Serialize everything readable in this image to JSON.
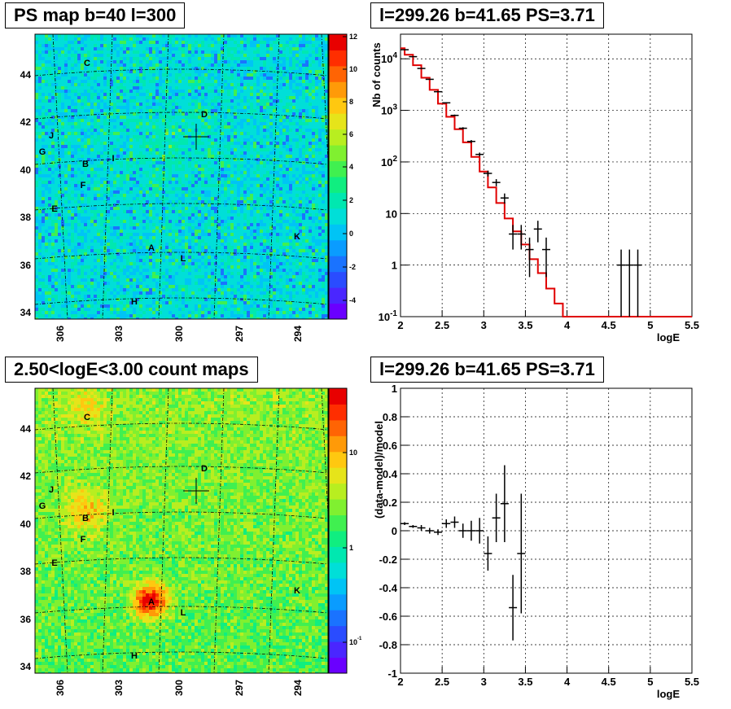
{
  "panels": {
    "tl_title": "PS map b=40 l=300",
    "tr_title": "l=299.26 b=41.65 PS=3.71",
    "bl_title": "2.50<logE<3.00 count maps",
    "br_title": "l=299.26 b=41.65 PS=3.71"
  },
  "chart_data": [
    {
      "type": "heatmap",
      "title": "PS map b=40 l=300",
      "x_ticks": [
        "306",
        "303",
        "300",
        "297",
        "294"
      ],
      "y_ticks": [
        "44",
        "42",
        "40",
        "38",
        "36",
        "34"
      ],
      "colorbar_ticks": [
        "12",
        "10",
        "8",
        "6",
        "4",
        "2",
        "0",
        "-2",
        "-4"
      ],
      "source_labels": [
        "C",
        "D",
        "J",
        "G",
        "I",
        "B",
        "F",
        "E",
        "K",
        "A",
        "L",
        "H"
      ],
      "colors": {
        "low": "#6a5acd",
        "mid": "#31d8c8",
        "high": "#e01010"
      }
    },
    {
      "type": "scatter",
      "title": "l=299.26 b=41.65 PS=3.71",
      "xlabel": "logE",
      "ylabel": "Nb of counts",
      "xlim": [
        2,
        5.5
      ],
      "ylim": [
        0.1,
        30000
      ],
      "yscale": "log",
      "x_ticks": [
        "2",
        "2.5",
        "3",
        "3.5",
        "4",
        "4.5",
        "5",
        "5.5"
      ],
      "y_ticks": [
        "10^4",
        "10^3",
        "10^2",
        "10",
        "1",
        "10^-1"
      ],
      "grid": true,
      "series": [
        {
          "kind": "data-points",
          "x": [
            2.05,
            2.15,
            2.25,
            2.35,
            2.45,
            2.55,
            2.65,
            2.75,
            2.85,
            2.95,
            3.05,
            3.15,
            3.25,
            3.35,
            3.45,
            3.55,
            3.65,
            3.75,
            4.65,
            4.75,
            4.85
          ],
          "y": [
            15000,
            11000,
            6500,
            4000,
            2300,
            1400,
            800,
            450,
            250,
            140,
            60,
            40,
            20,
            4,
            4,
            2,
            5,
            2,
            1,
            1,
            1
          ]
        },
        {
          "kind": "model-histogram",
          "color": "#e00000",
          "bin_edges": [
            1.95,
            2.05,
            2.15,
            2.25,
            2.35,
            2.45,
            2.55,
            2.65,
            2.75,
            2.85,
            2.95,
            3.05,
            3.15,
            3.25,
            3.35,
            3.45,
            3.55,
            3.65,
            3.75,
            3.85,
            3.95,
            4.05,
            5.5
          ],
          "values": [
            16000,
            12000,
            7500,
            4300,
            2500,
            1350,
            750,
            430,
            240,
            125,
            65,
            32,
            16,
            8,
            4.5,
            2.5,
            1.3,
            0.7,
            0.35,
            0.18,
            0.1,
            0.1
          ]
        }
      ]
    },
    {
      "type": "heatmap",
      "title": "2.50<logE<3.00 count maps",
      "x_ticks": [
        "306",
        "303",
        "300",
        "297",
        "294"
      ],
      "y_ticks": [
        "44",
        "42",
        "40",
        "38",
        "36",
        "34"
      ],
      "colorbar_ticks": [
        "10",
        "1",
        "10^-1"
      ],
      "source_labels": [
        "C",
        "D",
        "J",
        "G",
        "I",
        "B",
        "F",
        "E",
        "K",
        "A",
        "L",
        "H"
      ]
    },
    {
      "type": "scatter",
      "title": "l=299.26 b=41.65 PS=3.71",
      "xlabel": "logE",
      "ylabel": "(data-model)/model",
      "xlim": [
        2,
        5.5
      ],
      "ylim": [
        -1,
        1
      ],
      "x_ticks": [
        "2",
        "2.5",
        "3",
        "3.5",
        "4",
        "4.5",
        "5",
        "5.5"
      ],
      "y_ticks": [
        "1",
        "0.8",
        "0.6",
        "0.4",
        "0.2",
        "0",
        "-0.2",
        "-0.4",
        "-0.6",
        "-0.8",
        "-1"
      ],
      "grid": true,
      "x": [
        2.05,
        2.15,
        2.25,
        2.35,
        2.45,
        2.55,
        2.65,
        2.75,
        2.85,
        2.95,
        3.05,
        3.15,
        3.25,
        3.35,
        3.45
      ],
      "y": [
        0.05,
        0.03,
        0.02,
        0.0,
        -0.01,
        0.05,
        0.06,
        0.0,
        0.0,
        0.0,
        -0.16,
        0.09,
        0.19,
        -0.54,
        -0.16
      ],
      "yerr": [
        0.01,
        0.01,
        0.02,
        0.02,
        0.02,
        0.03,
        0.04,
        0.05,
        0.07,
        0.09,
        0.12,
        0.17,
        0.27,
        0.23,
        0.42
      ]
    }
  ]
}
